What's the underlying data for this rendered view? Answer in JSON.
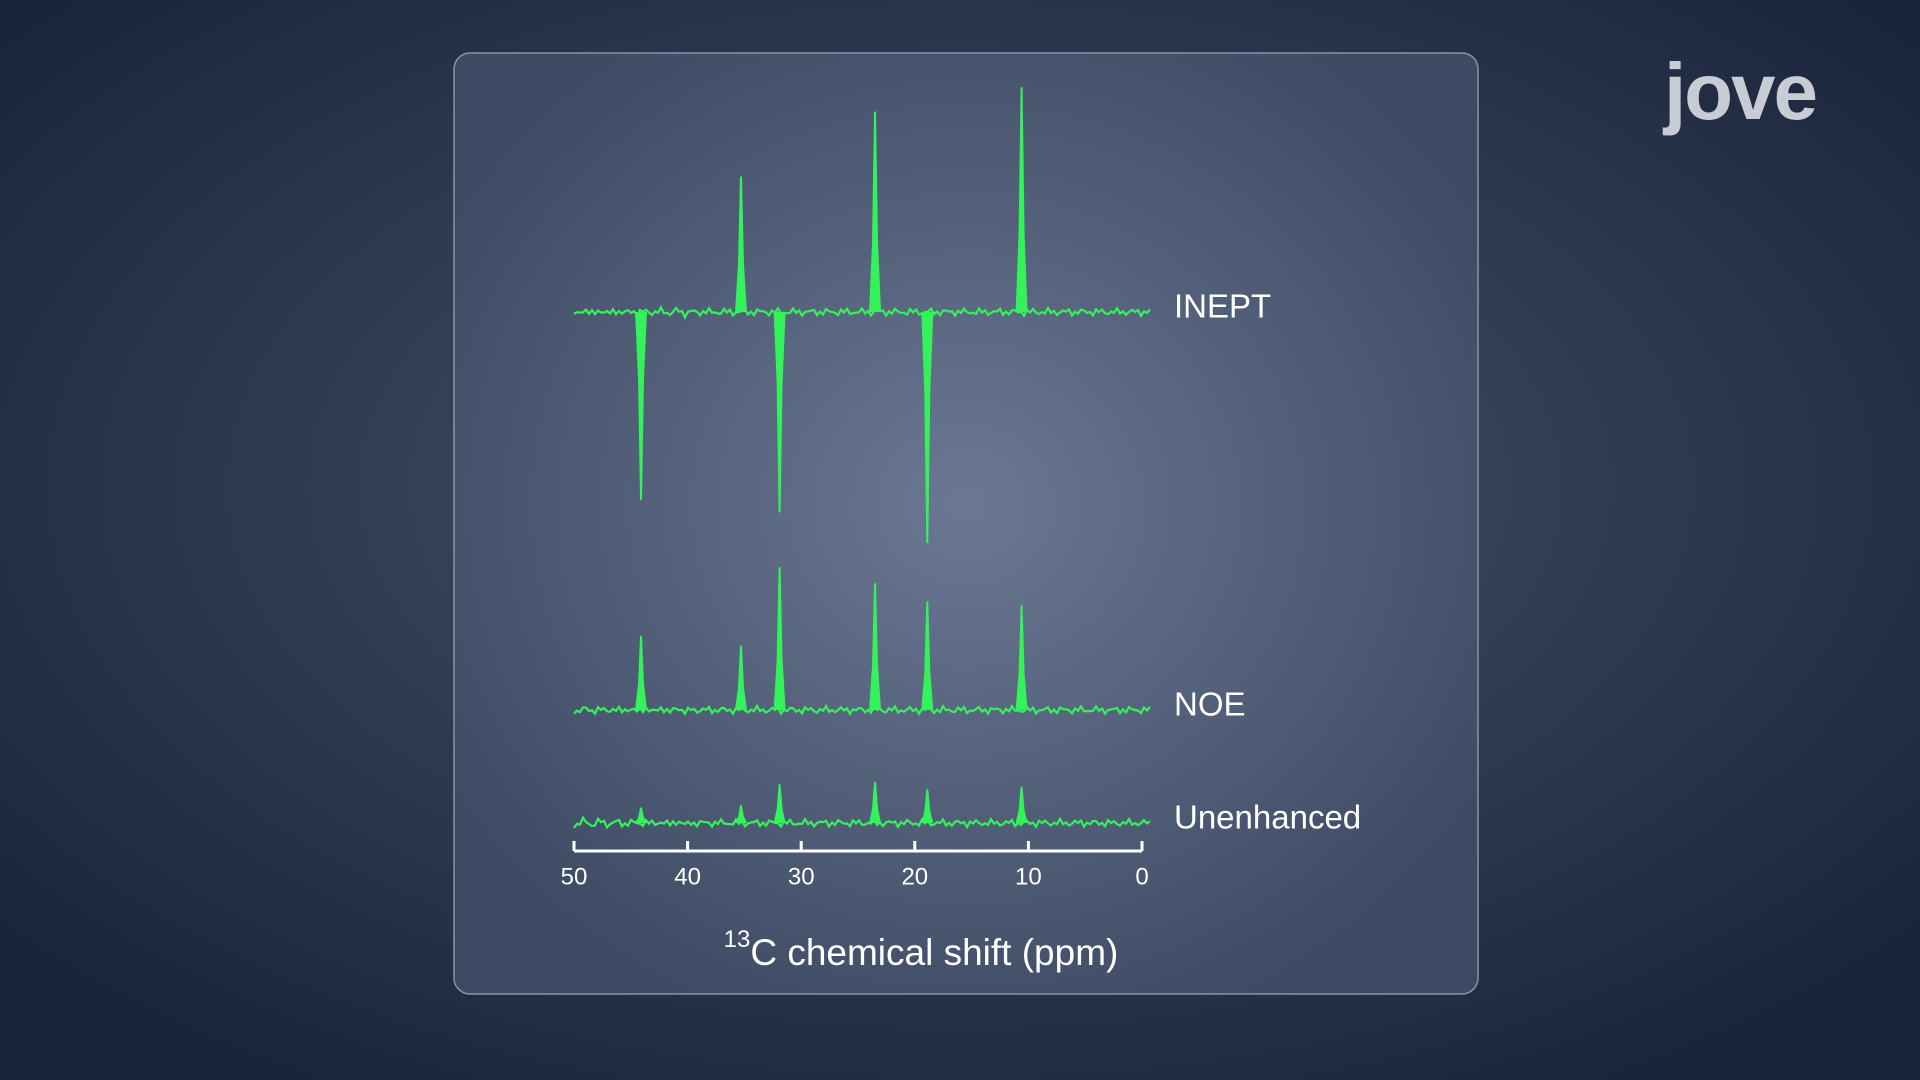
{
  "chart_data": {
    "type": "spectrum",
    "x_label_sup": "13",
    "x_label": "C chemical shift (ppm)",
    "xlim": [
      50,
      0
    ],
    "xticks": [
      50,
      40,
      30,
      20,
      10,
      0
    ],
    "series": [
      {
        "name": "INEPT",
        "color": "#33f25a",
        "x": [
          44.1,
          35.3,
          31.9,
          23.5,
          18.9,
          10.6
        ],
        "values": [
          -153,
          110,
          -163,
          163,
          -188,
          183
        ]
      },
      {
        "name": "NOE",
        "color": "#33f25a",
        "x": [
          44.1,
          35.3,
          31.9,
          23.5,
          18.9,
          10.6
        ],
        "values": [
          60,
          52,
          116,
          103,
          88,
          85
        ]
      },
      {
        "name": "Unenhanced",
        "color": "#33f25a",
        "x": [
          44.1,
          35.3,
          31.9,
          23.5,
          18.9,
          10.6
        ],
        "values": [
          12,
          14,
          31,
          33,
          27,
          29
        ]
      }
    ]
  },
  "logo": "jove"
}
